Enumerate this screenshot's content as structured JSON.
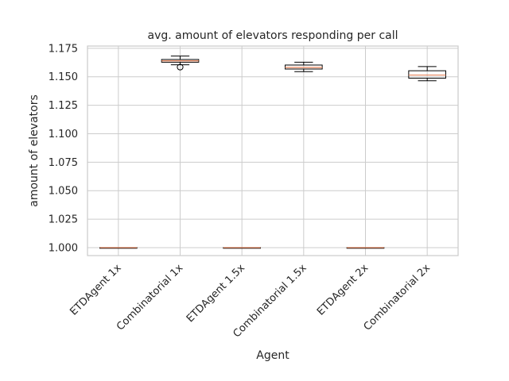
{
  "chart_data": {
    "type": "box",
    "title": "avg. amount of elevators responding per call",
    "xlabel": "Agent",
    "ylabel": "amount of elevators",
    "ylim": [
      0.993,
      1.177
    ],
    "yticks": [
      "1.000",
      "1.025",
      "1.050",
      "1.075",
      "1.100",
      "1.125",
      "1.150",
      "1.175"
    ],
    "ytick_values": [
      1.0,
      1.025,
      1.05,
      1.075,
      1.1,
      1.125,
      1.15,
      1.175
    ],
    "grid": true,
    "categories": [
      "ETDAgent 1x",
      "Combinatorial 1x",
      "ETDAgent 1.5x",
      "Combinatorial 1.5x",
      "ETDAgent 2x",
      "Combinatorial 2x"
    ],
    "boxes": [
      {
        "label": "ETDAgent 1x",
        "whisker_low": 1.0,
        "q1": 1.0,
        "median": 1.0,
        "q3": 1.0,
        "whisker_high": 1.0,
        "fliers": []
      },
      {
        "label": "Combinatorial 1x",
        "whisker_low": 1.1605,
        "q1": 1.1628,
        "median": 1.164,
        "q3": 1.1652,
        "whisker_high": 1.1682,
        "fliers": [
          1.1585
        ]
      },
      {
        "label": "ETDAgent 1.5x",
        "whisker_low": 1.0,
        "q1": 1.0,
        "median": 1.0,
        "q3": 1.0,
        "whisker_high": 1.0,
        "fliers": []
      },
      {
        "label": "Combinatorial 1.5x",
        "whisker_low": 1.1545,
        "q1": 1.1568,
        "median": 1.1582,
        "q3": 1.1603,
        "whisker_high": 1.1628,
        "fliers": []
      },
      {
        "label": "ETDAgent 2x",
        "whisker_low": 1.0,
        "q1": 1.0,
        "median": 1.0,
        "q3": 1.0,
        "whisker_high": 1.0,
        "fliers": []
      },
      {
        "label": "Combinatorial 2x",
        "whisker_low": 1.1465,
        "q1": 1.1488,
        "median": 1.1515,
        "q3": 1.1553,
        "whisker_high": 1.159,
        "fliers": []
      }
    ],
    "colors": {
      "box": "#000000",
      "median": "#e8855b",
      "grid": "#cccccc",
      "text": "#262626"
    }
  }
}
